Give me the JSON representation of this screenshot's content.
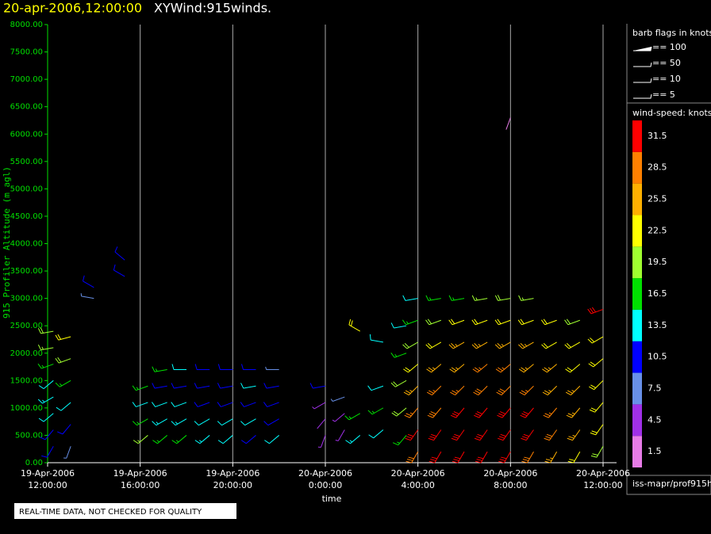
{
  "header": {
    "date": "20-apr-2006,12:00:00",
    "title": "XYWind:915winds."
  },
  "chart_data": {
    "type": "wind-barb",
    "x_label": "time",
    "y_label": "915 Profiler Altitude (m agl)",
    "xlim": [
      "2006-04-19T12:00",
      "2006-04-20T12:35"
    ],
    "xticks": [
      {
        "value": "2006-04-19T12:00",
        "label": [
          "19-Apr-2006",
          "12:00:00"
        ]
      },
      {
        "value": "2006-04-19T16:00",
        "label": [
          "19-Apr-2006",
          "16:00:00"
        ]
      },
      {
        "value": "2006-04-19T20:00",
        "label": [
          "19-Apr-2006",
          "20:00:00"
        ]
      },
      {
        "value": "2006-04-20T00:00",
        "label": [
          "20-Apr-2006",
          "0:00:00"
        ]
      },
      {
        "value": "2006-04-20T04:00",
        "label": [
          "20-Apr-2006",
          "4:00:00"
        ]
      },
      {
        "value": "2006-04-20T08:00",
        "label": [
          "20-Apr-2006",
          "8:00:00"
        ]
      },
      {
        "value": "2006-04-20T12:00",
        "label": [
          "20-Apr-2006",
          "12:00:00"
        ]
      }
    ],
    "ylim": [
      0,
      8000
    ],
    "yticks": [
      {
        "value": 0,
        "label": "0.00"
      },
      {
        "value": 500,
        "label": "500.00"
      },
      {
        "value": 1000,
        "label": "1000.00"
      },
      {
        "value": 1500,
        "label": "1500.00"
      },
      {
        "value": 2000,
        "label": "2000.00"
      },
      {
        "value": 2500,
        "label": "2500.00"
      },
      {
        "value": 3000,
        "label": "3000.00"
      },
      {
        "value": 3500,
        "label": "3500.00"
      },
      {
        "value": 4000,
        "label": "4000.00"
      },
      {
        "value": 4500,
        "label": "4500.00"
      },
      {
        "value": 5000,
        "label": "5000.00"
      },
      {
        "value": 5500,
        "label": "5500.00"
      },
      {
        "value": 6000,
        "label": "6000.00"
      },
      {
        "value": 6500,
        "label": "6500.00"
      },
      {
        "value": 7000,
        "label": "7000.00"
      },
      {
        "value": 7500,
        "label": "7500.00"
      },
      {
        "value": 8000,
        "label": "8000.00"
      }
    ],
    "grid": true,
    "profiles": [
      {
        "time": "2006-04-19T12:15",
        "altitudes": [
          300,
          600,
          900,
          1200,
          1500,
          1800,
          2100,
          2400
        ],
        "speeds": [
          11,
          12,
          14,
          15,
          13,
          16,
          19,
          21
        ],
        "directions": [
          210,
          220,
          230,
          240,
          230,
          250,
          260,
          260
        ]
      },
      {
        "time": "2006-04-19T13:00",
        "altitudes": [
          300,
          700,
          1100,
          1500,
          1900,
          2300
        ],
        "speeds": [
          9,
          12,
          14,
          18,
          20,
          22
        ],
        "directions": [
          200,
          220,
          230,
          240,
          250,
          255
        ]
      },
      {
        "time": "2006-04-19T14:00",
        "altitudes": [
          3000,
          3200
        ],
        "speeds": [
          9,
          10
        ],
        "directions": [
          280,
          300
        ]
      },
      {
        "time": "2006-04-19T15:20",
        "altitudes": [
          3400,
          3700
        ],
        "speeds": [
          11,
          12
        ],
        "directions": [
          300,
          310
        ]
      },
      {
        "time": "2006-04-19T16:20",
        "altitudes": [
          500,
          800,
          1100,
          1400
        ],
        "speeds": [
          19,
          17,
          14,
          16
        ],
        "directions": [
          230,
          240,
          250,
          250
        ]
      },
      {
        "time": "2006-04-19T17:10",
        "altitudes": [
          500,
          800,
          1100,
          1400,
          1700
        ],
        "speeds": [
          16,
          15,
          13,
          12,
          17
        ],
        "directions": [
          230,
          240,
          250,
          260,
          260
        ]
      },
      {
        "time": "2006-04-19T18:00",
        "altitudes": [
          500,
          800,
          1100,
          1400,
          1700
        ],
        "speeds": [
          17,
          15,
          14,
          12,
          14
        ],
        "directions": [
          230,
          240,
          250,
          260,
          270
        ]
      },
      {
        "time": "2006-04-19T19:00",
        "altitudes": [
          500,
          800,
          1100,
          1400,
          1700
        ],
        "speeds": [
          15,
          14,
          12,
          12,
          11
        ],
        "directions": [
          230,
          240,
          250,
          260,
          270
        ]
      },
      {
        "time": "2006-04-19T20:00",
        "altitudes": [
          500,
          800,
          1100,
          1400,
          1700
        ],
        "speeds": [
          13,
          14,
          12,
          11,
          12
        ],
        "directions": [
          230,
          240,
          250,
          260,
          270
        ]
      },
      {
        "time": "2006-04-19T21:00",
        "altitudes": [
          500,
          800,
          1100,
          1400,
          1700
        ],
        "speeds": [
          12,
          13,
          12,
          13,
          11
        ],
        "directions": [
          230,
          240,
          250,
          260,
          270
        ]
      },
      {
        "time": "2006-04-19T22:00",
        "altitudes": [
          500,
          800,
          1100,
          1400,
          1700
        ],
        "speeds": [
          14,
          12,
          10,
          11,
          9
        ],
        "directions": [
          230,
          240,
          250,
          260,
          270
        ]
      },
      {
        "time": "2006-04-20T00:00",
        "altitudes": [
          500,
          800,
          1100,
          1400
        ],
        "speeds": [
          5,
          4,
          6,
          11
        ],
        "directions": [
          200,
          220,
          240,
          260
        ]
      },
      {
        "time": "2006-04-20T00:50",
        "altitudes": [
          600,
          900,
          1200
        ],
        "speeds": [
          6,
          5,
          9
        ],
        "directions": [
          210,
          230,
          250
        ]
      },
      {
        "time": "2006-04-20T01:30",
        "altitudes": [
          500,
          900,
          2400
        ],
        "speeds": [
          15,
          16,
          24
        ],
        "directions": [
          230,
          240,
          300
        ]
      },
      {
        "time": "2006-04-20T02:30",
        "altitudes": [
          600,
          1000,
          1400,
          2200
        ],
        "speeds": [
          14,
          17,
          13,
          13
        ],
        "directions": [
          230,
          240,
          250,
          280
        ]
      },
      {
        "time": "2006-04-20T03:30",
        "altitudes": [
          500,
          1000,
          1500,
          2000,
          2500
        ],
        "speeds": [
          18,
          20,
          21,
          16,
          13
        ],
        "directions": [
          220,
          230,
          240,
          250,
          260
        ]
      },
      {
        "time": "2006-04-20T04:00",
        "altitudes": [
          200,
          600,
          1000,
          1400,
          1800,
          2200,
          2600,
          3000
        ],
        "speeds": [
          30,
          31,
          28,
          26,
          24,
          21,
          18,
          14
        ],
        "directions": [
          210,
          215,
          220,
          225,
          230,
          240,
          250,
          260
        ]
      },
      {
        "time": "2006-04-20T05:00",
        "altitudes": [
          200,
          600,
          1000,
          1400,
          1800,
          2200,
          2600,
          3000
        ],
        "speeds": [
          31,
          32,
          30,
          28,
          26,
          23,
          20,
          16
        ],
        "directions": [
          210,
          215,
          220,
          225,
          230,
          240,
          250,
          260
        ]
      },
      {
        "time": "2006-04-20T06:00",
        "altitudes": [
          200,
          600,
          1000,
          1400,
          1800,
          2200,
          2600,
          3000
        ],
        "speeds": [
          32,
          32,
          31,
          29,
          27,
          25,
          22,
          18
        ],
        "directions": [
          210,
          215,
          220,
          225,
          230,
          240,
          250,
          260
        ]
      },
      {
        "time": "2006-04-20T07:00",
        "altitudes": [
          200,
          600,
          1000,
          1400,
          1800,
          2200,
          2600,
          3000
        ],
        "speeds": [
          32,
          33,
          31,
          30,
          28,
          26,
          24,
          19
        ],
        "directions": [
          210,
          215,
          220,
          225,
          230,
          240,
          250,
          260
        ]
      },
      {
        "time": "2006-04-20T08:00",
        "altitudes": [
          200,
          600,
          1000,
          1400,
          1800,
          2200,
          2600,
          3000,
          6300
        ],
        "speeds": [
          31,
          33,
          32,
          30,
          28,
          27,
          24,
          20,
          3
        ],
        "directions": [
          210,
          215,
          220,
          225,
          230,
          240,
          250,
          260,
          200
        ]
      },
      {
        "time": "2006-04-20T09:00",
        "altitudes": [
          200,
          600,
          1000,
          1400,
          1800,
          2200,
          2600,
          3000
        ],
        "speeds": [
          30,
          32,
          31,
          29,
          27,
          26,
          23,
          19
        ],
        "directions": [
          210,
          215,
          220,
          225,
          230,
          240,
          250,
          260
        ]
      },
      {
        "time": "2006-04-20T10:00",
        "altitudes": [
          200,
          600,
          1000,
          1400,
          1800,
          2200,
          2600
        ],
        "speeds": [
          27,
          30,
          29,
          27,
          26,
          24,
          22
        ],
        "directions": [
          210,
          215,
          220,
          225,
          230,
          240,
          250
        ]
      },
      {
        "time": "2006-04-20T11:00",
        "altitudes": [
          200,
          600,
          1000,
          1400,
          1800,
          2200,
          2600
        ],
        "speeds": [
          24,
          27,
          26,
          25,
          24,
          23,
          21
        ],
        "directions": [
          210,
          215,
          220,
          225,
          230,
          240,
          250
        ]
      },
      {
        "time": "2006-04-20T12:00",
        "altitudes": [
          300,
          700,
          1100,
          1500,
          1900,
          2300,
          2800
        ],
        "speeds": [
          20,
          23,
          24,
          22,
          23,
          22,
          31
        ],
        "directions": [
          210,
          215,
          220,
          225,
          230,
          240,
          250
        ]
      }
    ],
    "barb_key": {
      "title": "barb flags in knots",
      "entries": [
        "== 100",
        "== 50",
        "== 10",
        "== 5"
      ]
    },
    "colorbar": {
      "title": "wind-speed: knots",
      "ticks": [
        1.5,
        4.5,
        7.5,
        10.5,
        13.5,
        16.5,
        19.5,
        22.5,
        25.5,
        28.5,
        31.5
      ],
      "colors": [
        "#e87ce8",
        "#a030e8",
        "#6890e8",
        "#0000ff",
        "#00ffff",
        "#00e000",
        "#a0ff30",
        "#ffff00",
        "#ffb000",
        "#ff8000",
        "#ff0000"
      ]
    },
    "source": "iss-mapr/prof915h",
    "note": "REAL-TIME DATA, NOT CHECKED FOR QUALITY"
  }
}
